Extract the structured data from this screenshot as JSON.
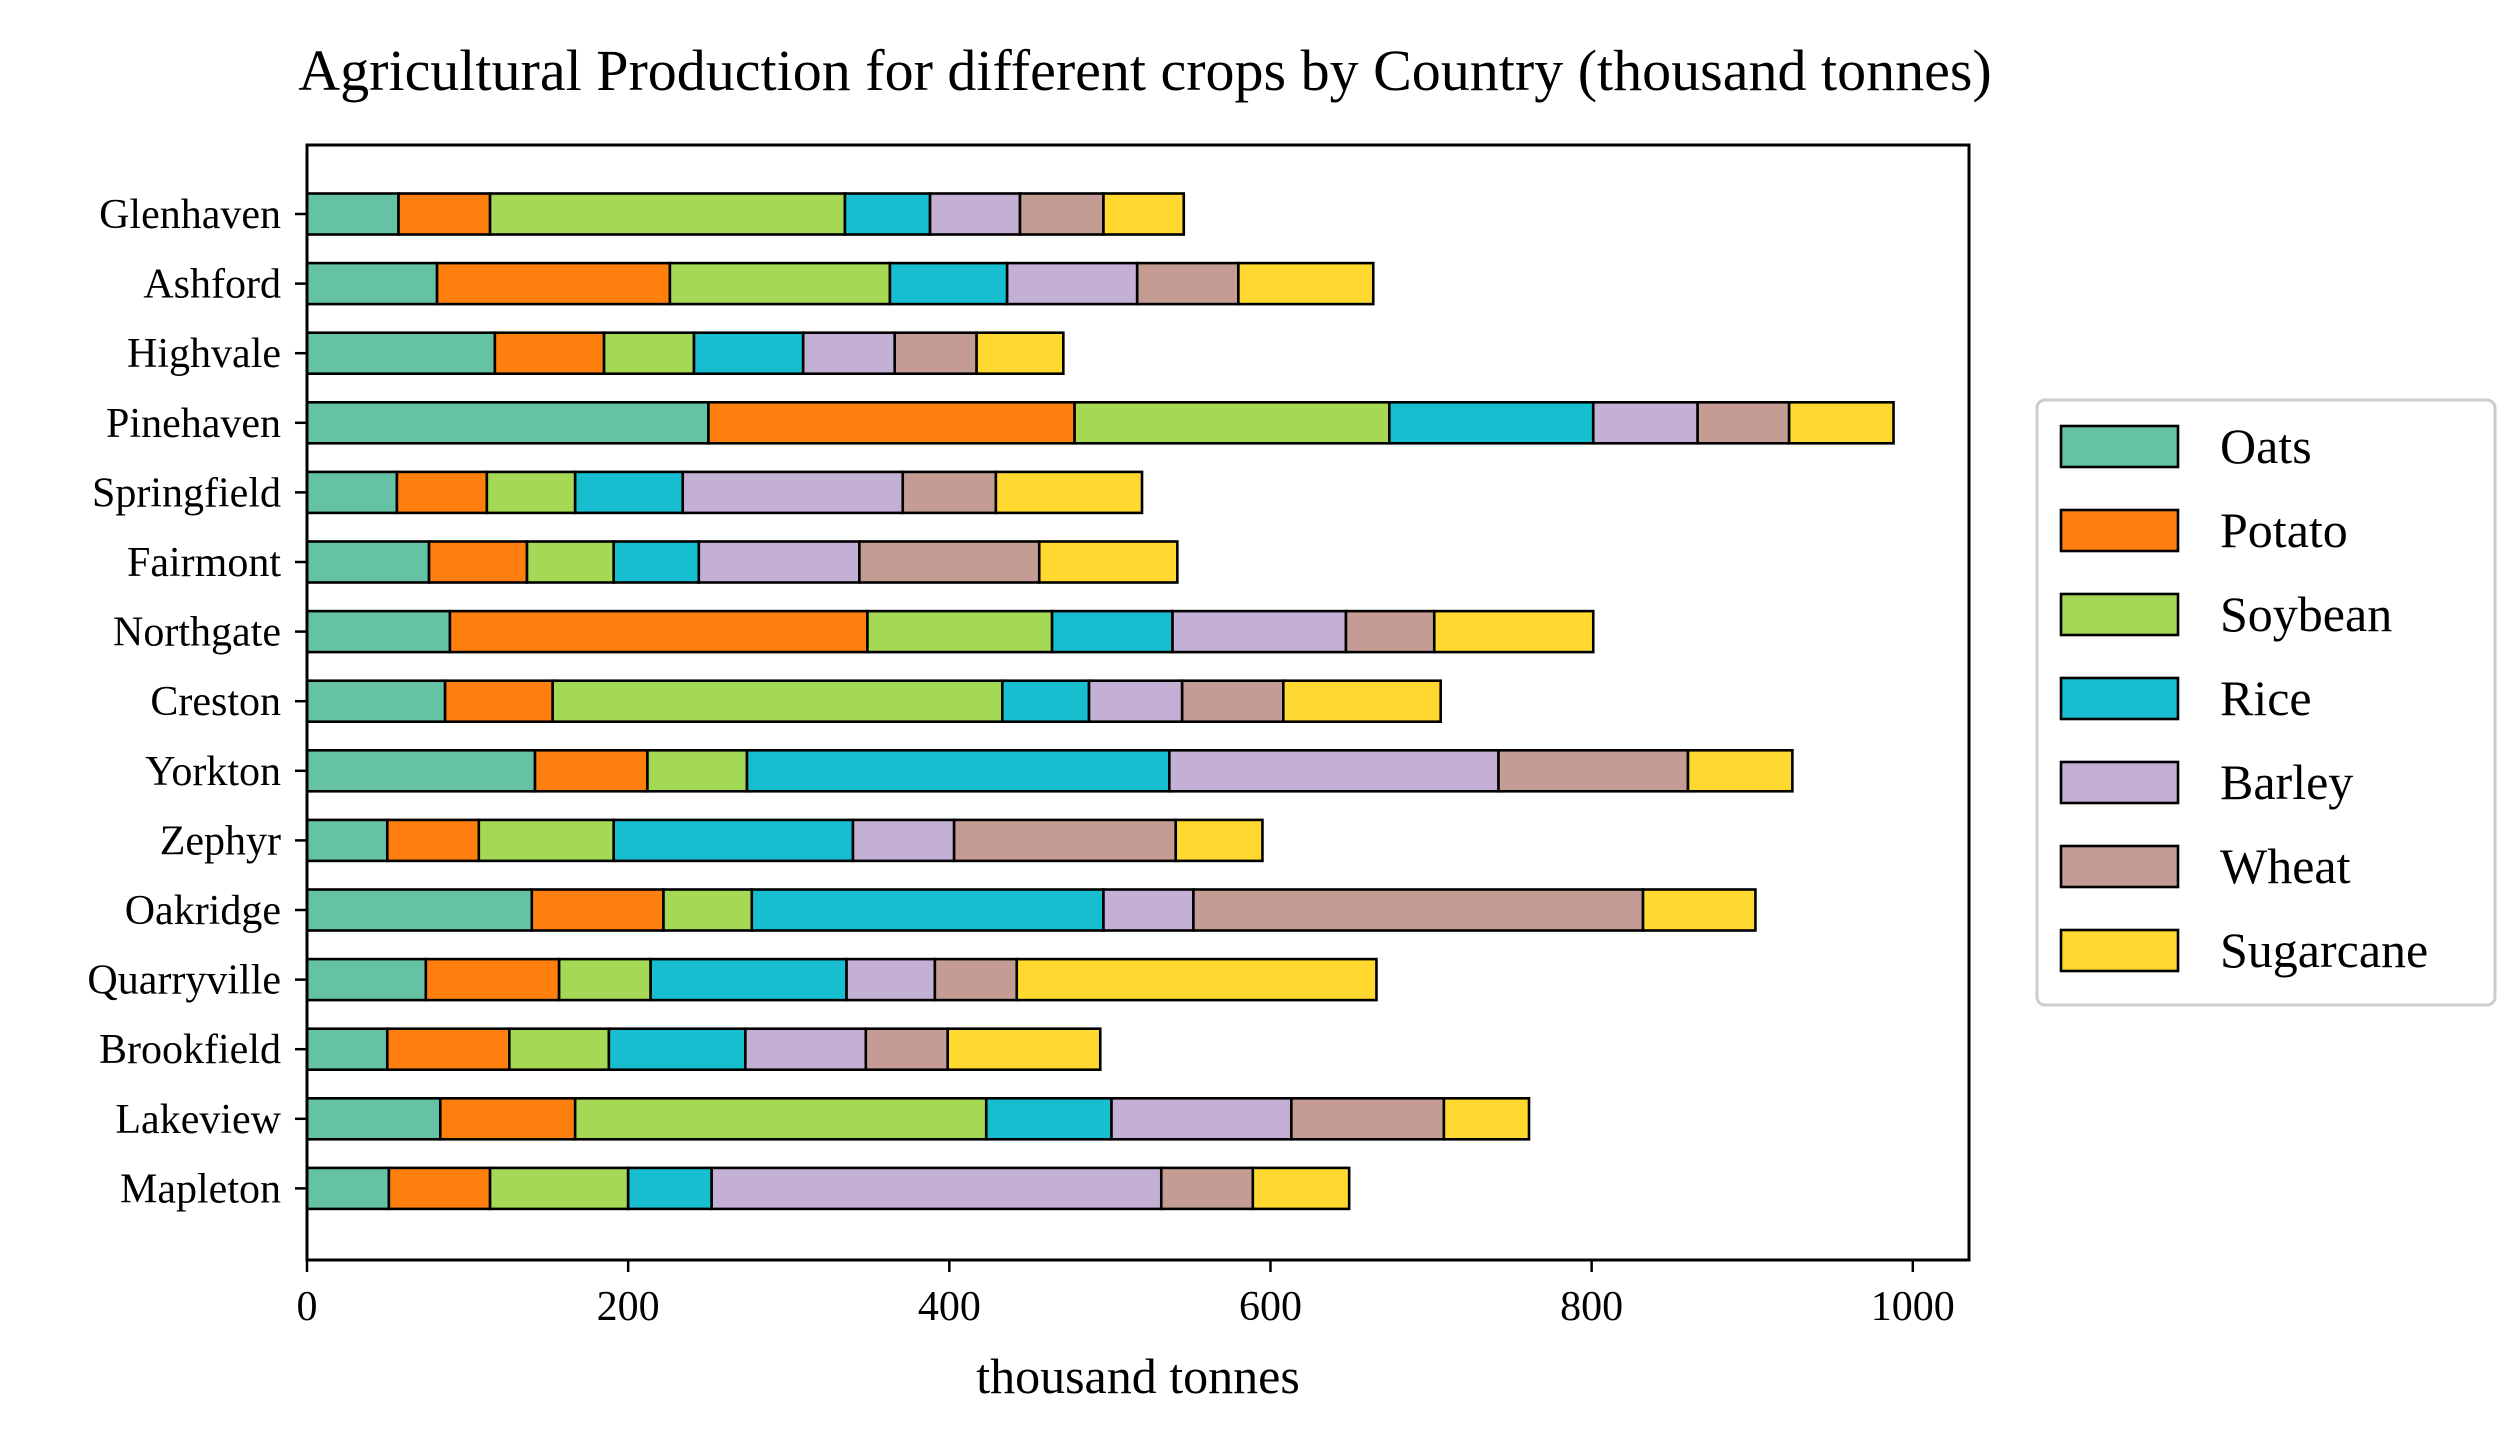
{
  "chart_data": {
    "type": "bar",
    "orientation": "horizontal",
    "stacked": true,
    "title": "Agricultural Production for different crops by Country (thousand tonnes)",
    "xlabel": "thousand tonnes",
    "ylabel": "",
    "xlim": [
      0,
      1035
    ],
    "xticks": [
      0,
      200,
      400,
      600,
      800,
      1000
    ],
    "xtick_labels": [
      "0",
      "200",
      "400",
      "600",
      "800",
      "1000"
    ],
    "grid": false,
    "legend_position": "right",
    "categories": [
      "Glenhaven",
      "Ashford",
      "Highvale",
      "Pinehaven",
      "Springfield",
      "Fairmont",
      "Northgate",
      "Creston",
      "Yorkton",
      "Zephyr",
      "Oakridge",
      "Quarryville",
      "Brookfield",
      "Lakeview",
      "Mapleton"
    ],
    "series": [
      {
        "name": "Oats",
        "color": "#66c2a5",
        "values": [
          57,
          81,
          117,
          250,
          56,
          76,
          89,
          86,
          142,
          50,
          140,
          74,
          50,
          83,
          51
        ]
      },
      {
        "name": "Potato",
        "color": "#ff7f0e",
        "values": [
          57,
          145,
          68,
          228,
          56,
          61,
          260,
          67,
          70,
          57,
          82,
          83,
          76,
          84,
          63
        ]
      },
      {
        "name": "Soybean",
        "color": "#a5d854",
        "values": [
          221,
          137,
          56,
          196,
          55,
          54,
          115,
          280,
          62,
          84,
          55,
          57,
          62,
          256,
          86
        ]
      },
      {
        "name": "Rice",
        "color": "#17becf",
        "values": [
          53,
          73,
          68,
          127,
          67,
          53,
          75,
          54,
          263,
          149,
          219,
          122,
          85,
          78,
          52
        ]
      },
      {
        "name": "Barley",
        "color": "#c5b0d5",
        "values": [
          56,
          81,
          57,
          65,
          137,
          100,
          108,
          58,
          205,
          63,
          56,
          55,
          75,
          112,
          280
        ]
      },
      {
        "name": "Wheat",
        "color": "#c49c94",
        "values": [
          52,
          63,
          51,
          57,
          58,
          112,
          55,
          63,
          118,
          138,
          280,
          51,
          51,
          95,
          57
        ]
      },
      {
        "name": "Sugarcane",
        "color": "#ffd92f",
        "values": [
          50,
          84,
          54,
          65,
          91,
          86,
          99,
          98,
          65,
          54,
          70,
          224,
          95,
          53,
          60
        ]
      }
    ]
  }
}
